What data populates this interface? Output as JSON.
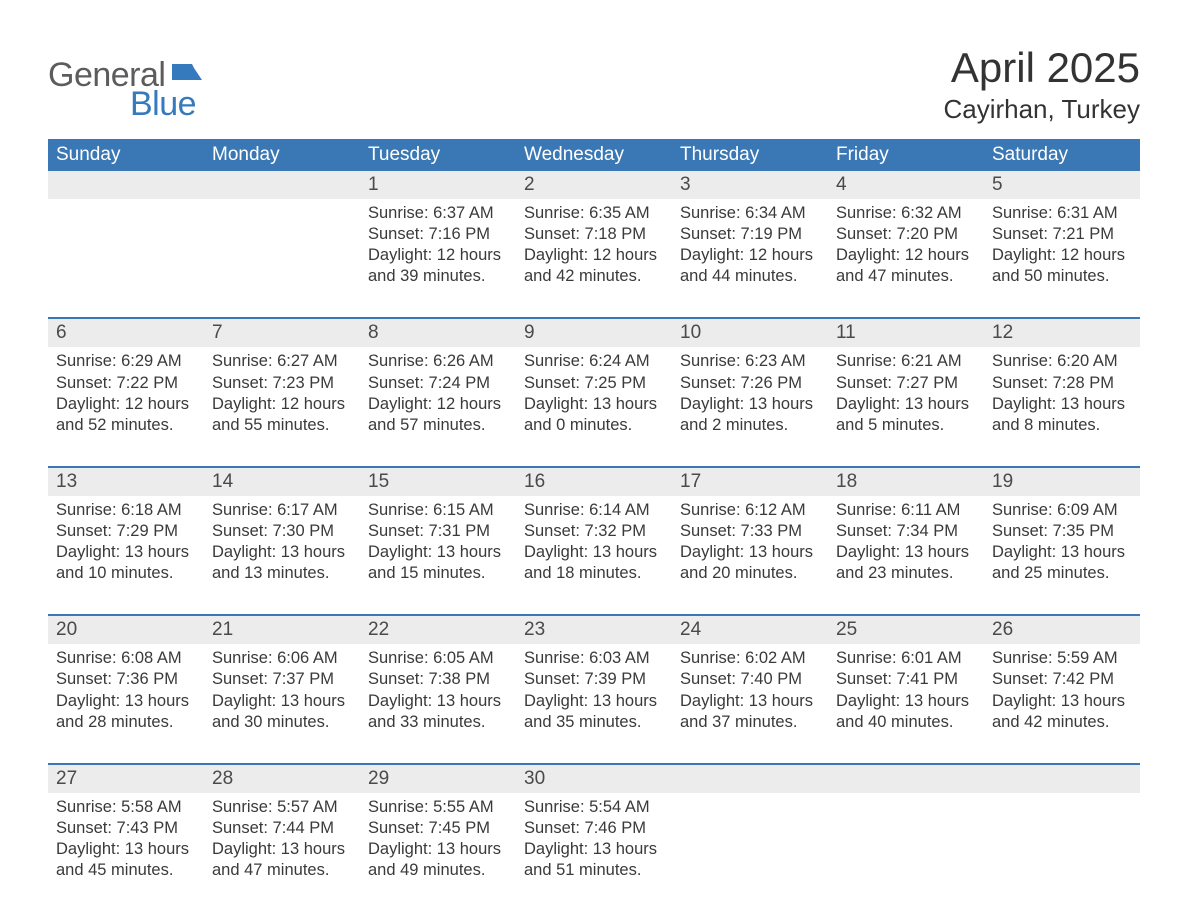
{
  "logo": {
    "word1": "General",
    "word2": "Blue",
    "flag_color": "#357abd"
  },
  "title": "April 2025",
  "location": "Cayirhan, Turkey",
  "colors": {
    "header_bg": "#3a78b5",
    "header_text": "#ffffff",
    "daynum_bg": "#ececec",
    "week_divider": "#3a78b5",
    "body_text": "#3a3a3a",
    "page_bg": "#ffffff"
  },
  "fonts": {
    "title_size_pt": 32,
    "location_size_pt": 20,
    "dayheader_size_pt": 14,
    "daynum_size_pt": 14,
    "body_size_pt": 12
  },
  "day_headers": [
    "Sunday",
    "Monday",
    "Tuesday",
    "Wednesday",
    "Thursday",
    "Friday",
    "Saturday"
  ],
  "weeks": [
    [
      null,
      null,
      {
        "n": "1",
        "sunrise": "6:37 AM",
        "sunset": "7:16 PM",
        "dl_h": 12,
        "dl_m": 39
      },
      {
        "n": "2",
        "sunrise": "6:35 AM",
        "sunset": "7:18 PM",
        "dl_h": 12,
        "dl_m": 42
      },
      {
        "n": "3",
        "sunrise": "6:34 AM",
        "sunset": "7:19 PM",
        "dl_h": 12,
        "dl_m": 44
      },
      {
        "n": "4",
        "sunrise": "6:32 AM",
        "sunset": "7:20 PM",
        "dl_h": 12,
        "dl_m": 47
      },
      {
        "n": "5",
        "sunrise": "6:31 AM",
        "sunset": "7:21 PM",
        "dl_h": 12,
        "dl_m": 50
      }
    ],
    [
      {
        "n": "6",
        "sunrise": "6:29 AM",
        "sunset": "7:22 PM",
        "dl_h": 12,
        "dl_m": 52
      },
      {
        "n": "7",
        "sunrise": "6:27 AM",
        "sunset": "7:23 PM",
        "dl_h": 12,
        "dl_m": 55
      },
      {
        "n": "8",
        "sunrise": "6:26 AM",
        "sunset": "7:24 PM",
        "dl_h": 12,
        "dl_m": 57
      },
      {
        "n": "9",
        "sunrise": "6:24 AM",
        "sunset": "7:25 PM",
        "dl_h": 13,
        "dl_m": 0
      },
      {
        "n": "10",
        "sunrise": "6:23 AM",
        "sunset": "7:26 PM",
        "dl_h": 13,
        "dl_m": 2
      },
      {
        "n": "11",
        "sunrise": "6:21 AM",
        "sunset": "7:27 PM",
        "dl_h": 13,
        "dl_m": 5
      },
      {
        "n": "12",
        "sunrise": "6:20 AM",
        "sunset": "7:28 PM",
        "dl_h": 13,
        "dl_m": 8
      }
    ],
    [
      {
        "n": "13",
        "sunrise": "6:18 AM",
        "sunset": "7:29 PM",
        "dl_h": 13,
        "dl_m": 10
      },
      {
        "n": "14",
        "sunrise": "6:17 AM",
        "sunset": "7:30 PM",
        "dl_h": 13,
        "dl_m": 13
      },
      {
        "n": "15",
        "sunrise": "6:15 AM",
        "sunset": "7:31 PM",
        "dl_h": 13,
        "dl_m": 15
      },
      {
        "n": "16",
        "sunrise": "6:14 AM",
        "sunset": "7:32 PM",
        "dl_h": 13,
        "dl_m": 18
      },
      {
        "n": "17",
        "sunrise": "6:12 AM",
        "sunset": "7:33 PM",
        "dl_h": 13,
        "dl_m": 20
      },
      {
        "n": "18",
        "sunrise": "6:11 AM",
        "sunset": "7:34 PM",
        "dl_h": 13,
        "dl_m": 23
      },
      {
        "n": "19",
        "sunrise": "6:09 AM",
        "sunset": "7:35 PM",
        "dl_h": 13,
        "dl_m": 25
      }
    ],
    [
      {
        "n": "20",
        "sunrise": "6:08 AM",
        "sunset": "7:36 PM",
        "dl_h": 13,
        "dl_m": 28
      },
      {
        "n": "21",
        "sunrise": "6:06 AM",
        "sunset": "7:37 PM",
        "dl_h": 13,
        "dl_m": 30
      },
      {
        "n": "22",
        "sunrise": "6:05 AM",
        "sunset": "7:38 PM",
        "dl_h": 13,
        "dl_m": 33
      },
      {
        "n": "23",
        "sunrise": "6:03 AM",
        "sunset": "7:39 PM",
        "dl_h": 13,
        "dl_m": 35
      },
      {
        "n": "24",
        "sunrise": "6:02 AM",
        "sunset": "7:40 PM",
        "dl_h": 13,
        "dl_m": 37
      },
      {
        "n": "25",
        "sunrise": "6:01 AM",
        "sunset": "7:41 PM",
        "dl_h": 13,
        "dl_m": 40
      },
      {
        "n": "26",
        "sunrise": "5:59 AM",
        "sunset": "7:42 PM",
        "dl_h": 13,
        "dl_m": 42
      }
    ],
    [
      {
        "n": "27",
        "sunrise": "5:58 AM",
        "sunset": "7:43 PM",
        "dl_h": 13,
        "dl_m": 45
      },
      {
        "n": "28",
        "sunrise": "5:57 AM",
        "sunset": "7:44 PM",
        "dl_h": 13,
        "dl_m": 47
      },
      {
        "n": "29",
        "sunrise": "5:55 AM",
        "sunset": "7:45 PM",
        "dl_h": 13,
        "dl_m": 49
      },
      {
        "n": "30",
        "sunrise": "5:54 AM",
        "sunset": "7:46 PM",
        "dl_h": 13,
        "dl_m": 51
      },
      null,
      null,
      null
    ]
  ],
  "labels": {
    "sunrise": "Sunrise:",
    "sunset": "Sunset:",
    "daylight": "Daylight:",
    "hours": "hours",
    "and": "and",
    "minutes": "minutes."
  }
}
